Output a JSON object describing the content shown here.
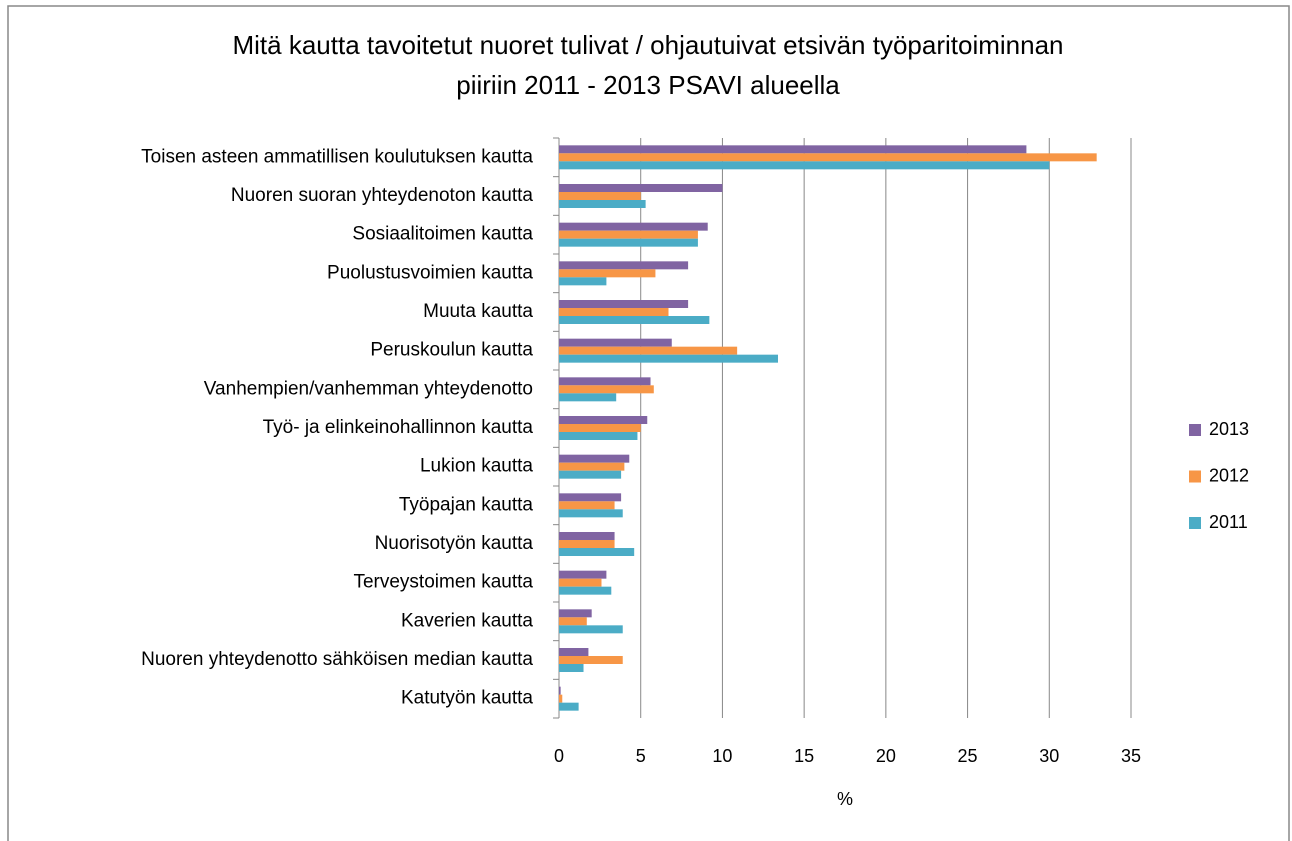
{
  "chart_data": {
    "type": "hbar",
    "title": [
      "Mitä kautta tavoitetut nuoret tulivat / ohjautuivat etsivän työparitoiminnan",
      "piiriin 2011 - 2013 PSAVI alueella"
    ],
    "x_label": "%",
    "categories": [
      "Toisen asteen ammatillisen koulutuksen kautta",
      "Nuoren suoran yhteydenoton kautta",
      "Sosiaalitoimen kautta",
      "Puolustusvoimien kautta",
      "Muuta kautta",
      "Peruskoulun kautta",
      "Vanhempien/vanhemman yhteydenotto",
      "Työ- ja elinkeinohallinnon kautta",
      "Lukion kautta",
      "Työpajan kautta",
      "Nuorisotyön kautta",
      "Terveystoimen kautta",
      "Kaverien kautta",
      "Nuoren yhteydenotto sähköisen median kautta",
      "Katutyön kautta"
    ],
    "series": [
      {
        "name": "2013",
        "color": "#8064a2",
        "values": [
          28.6,
          10.0,
          9.1,
          7.9,
          7.9,
          6.9,
          5.6,
          5.4,
          4.3,
          3.8,
          3.4,
          2.9,
          2.0,
          1.8,
          0.1
        ]
      },
      {
        "name": "2012",
        "color": "#f79646",
        "values": [
          32.9,
          5.0,
          8.5,
          5.9,
          6.7,
          10.9,
          5.8,
          5.0,
          4.0,
          3.4,
          3.4,
          2.6,
          1.7,
          3.9,
          0.2
        ]
      },
      {
        "name": "2011",
        "color": "#4bacc6",
        "values": [
          30.0,
          5.3,
          8.5,
          2.9,
          9.2,
          13.4,
          3.5,
          4.8,
          3.8,
          3.9,
          4.6,
          3.2,
          3.9,
          1.5,
          1.2
        ]
      }
    ],
    "xlim": [
      0,
      35
    ],
    "xticks": [
      0,
      5,
      10,
      15,
      20,
      25,
      30,
      35
    ],
    "grid": true,
    "legend": "right"
  }
}
